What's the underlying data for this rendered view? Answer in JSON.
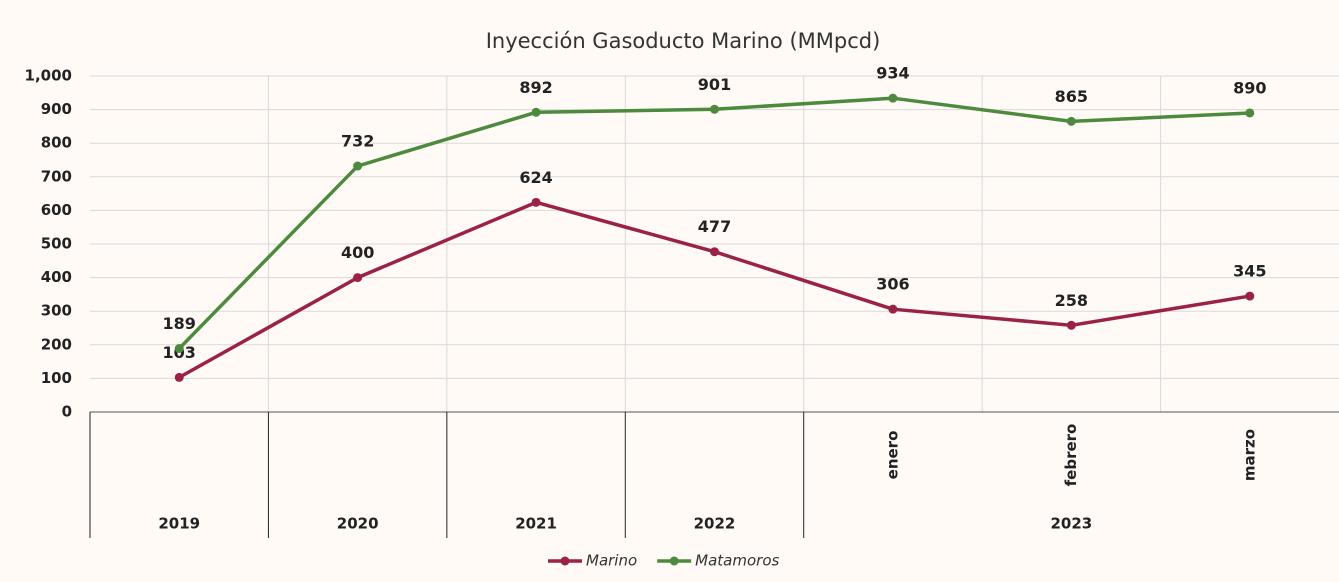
{
  "chart_data": {
    "type": "line",
    "title": "Inyección Gasoducto Marino (MMpcd)",
    "categories": [
      "2019",
      "2020",
      "2021",
      "2022",
      "enero",
      "febrero",
      "marzo"
    ],
    "category_groups": [
      {
        "label": "2023",
        "span": 3
      }
    ],
    "series": [
      {
        "name": "Marino",
        "color": "#9b2247",
        "values": [
          103,
          400,
          624,
          477,
          306,
          258,
          345
        ]
      },
      {
        "name": "Matamoros",
        "color": "#4e8a3e",
        "values": [
          189,
          732,
          892,
          901,
          934,
          865,
          890
        ]
      }
    ],
    "ylim": [
      0,
      1000
    ],
    "yticks": [
      0,
      100,
      200,
      300,
      400,
      500,
      600,
      700,
      800,
      900,
      {
        "value": 1000,
        "label": "1,000"
      }
    ],
    "grid": true,
    "legend": "bottom"
  }
}
